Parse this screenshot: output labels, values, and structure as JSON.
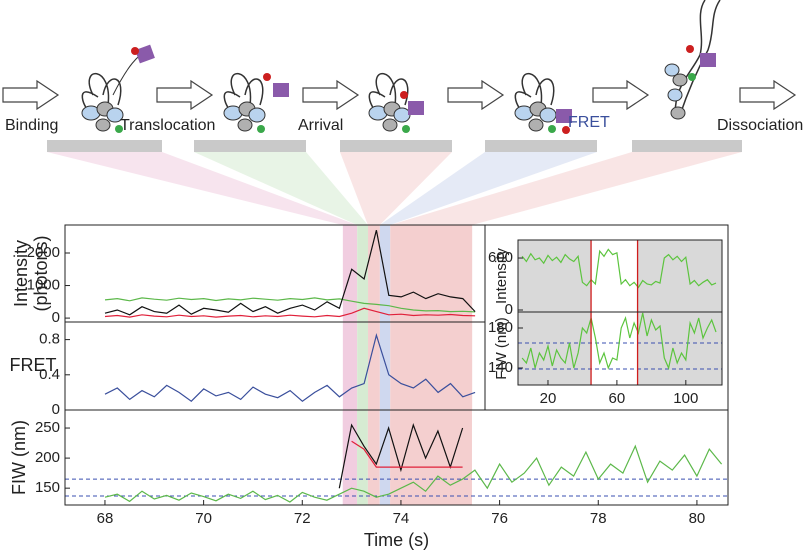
{
  "schematic": {
    "stages": [
      "Binding",
      "Translocation",
      "Arrival",
      "FRET",
      "Dissociation"
    ]
  },
  "shaded_regions": [
    {
      "start": 72.82,
      "end": 73.11,
      "color": "#f1cde0"
    },
    {
      "start": 73.11,
      "end": 73.33,
      "color": "#d6ebd2"
    },
    {
      "start": 73.33,
      "end": 73.57,
      "color": "#f4cfcf"
    },
    {
      "start": 73.57,
      "end": 73.78,
      "color": "#cfd8ef"
    },
    {
      "start": 73.78,
      "end": 75.44,
      "color": "#f4cfcf"
    }
  ],
  "chart_data": [
    {
      "type": "line",
      "y_label": [
        "Intensity",
        "(photons)"
      ],
      "x": [
        68,
        68.25,
        68.5,
        68.75,
        69,
        69.25,
        69.5,
        69.75,
        70,
        70.25,
        70.5,
        70.75,
        71,
        71.25,
        71.5,
        71.75,
        72,
        72.25,
        72.5,
        72.75,
        73,
        73.25,
        73.5,
        73.75,
        74,
        74.25,
        74.5,
        74.75,
        75,
        75.25,
        75.5
      ],
      "xlim": [
        67.19,
        75.7
      ],
      "ylim": [
        -120,
        2860
      ],
      "yticks": [
        0,
        1000,
        2000
      ],
      "series": [
        {
          "name": "green",
          "color": "#5cb84a",
          "values": [
            560,
            600,
            530,
            620,
            580,
            550,
            610,
            570,
            600,
            540,
            590,
            560,
            610,
            580,
            550,
            600,
            570,
            620,
            560,
            590,
            520,
            450,
            420,
            380,
            300,
            250,
            220,
            230,
            200,
            210,
            190
          ]
        },
        {
          "name": "black",
          "color": "#111111",
          "values": [
            150,
            250,
            100,
            350,
            200,
            150,
            400,
            120,
            300,
            250,
            180,
            450,
            200,
            350,
            150,
            300,
            400,
            250,
            500,
            300,
            1500,
            1200,
            2700,
            700,
            650,
            800,
            600,
            750,
            650,
            600,
            200
          ]
        },
        {
          "name": "red",
          "color": "#e0203a",
          "values": [
            50,
            80,
            30,
            100,
            60,
            40,
            90,
            50,
            70,
            30,
            60,
            80,
            40,
            70,
            50,
            90,
            60,
            40,
            80,
            50,
            150,
            300,
            200,
            100,
            120,
            80,
            100,
            90,
            110,
            80,
            70
          ]
        }
      ]
    },
    {
      "type": "line",
      "y_label": "FRET",
      "x": [
        68,
        68.25,
        68.5,
        68.75,
        69,
        69.25,
        69.5,
        69.75,
        70,
        70.25,
        70.5,
        70.75,
        71,
        71.25,
        71.5,
        71.75,
        72,
        72.25,
        72.5,
        72.75,
        73,
        73.25,
        73.5,
        73.75,
        74,
        74.25,
        74.5,
        74.75,
        75,
        75.25,
        75.5
      ],
      "xlim": [
        67.19,
        75.7
      ],
      "ylim": [
        0,
        1.0
      ],
      "yticks": [
        0,
        0.4,
        0.8
      ],
      "series": [
        {
          "name": "blue",
          "color": "#3a4f9c",
          "values": [
            0.18,
            0.25,
            0.12,
            0.22,
            0.15,
            0.28,
            0.2,
            0.1,
            0.24,
            0.16,
            0.2,
            0.12,
            0.26,
            0.18,
            0.14,
            0.22,
            0.1,
            0.2,
            0.28,
            0.15,
            0.25,
            0.3,
            0.85,
            0.4,
            0.3,
            0.25,
            0.35,
            0.2,
            0.3,
            0.15,
            0.2
          ]
        }
      ]
    },
    {
      "type": "line",
      "y_label": "FIW (nm)",
      "x_label": "Time (s)",
      "x": [
        68,
        68.25,
        68.5,
        68.75,
        69,
        69.25,
        69.5,
        69.75,
        70,
        70.25,
        70.5,
        70.75,
        71,
        71.25,
        71.5,
        71.75,
        72,
        72.25,
        72.5,
        72.75,
        73,
        73.25,
        73.5,
        73.75,
        74,
        74.25,
        74.5,
        74.75,
        75,
        75.25,
        75.5,
        75.75,
        76,
        76.25,
        76.5,
        76.75,
        77,
        77.25,
        77.5,
        77.75,
        78,
        78.25,
        78.5,
        78.75,
        79,
        79.25,
        79.5,
        79.75,
        80,
        80.25,
        80.5
      ],
      "xlim": [
        67.19,
        80.63
      ],
      "xticks": [
        68,
        70,
        72,
        74,
        76,
        78,
        80
      ],
      "ylim": [
        122,
        280
      ],
      "yticks": [
        150,
        200,
        250
      ],
      "reference_lines": [
        165,
        137
      ],
      "series": [
        {
          "name": "green",
          "color": "#5cb84a",
          "values": [
            135,
            140,
            128,
            145,
            132,
            138,
            130,
            142,
            136,
            129,
            140,
            133,
            145,
            131,
            138,
            127,
            143,
            135,
            130,
            140,
            150,
            145,
            135,
            140,
            150,
            160,
            145,
            170,
            155,
            165,
            180,
            150,
            190,
            160,
            175,
            200,
            155,
            185,
            170,
            210,
            165,
            190,
            175,
            220,
            160,
            195,
            180,
            205,
            170,
            215,
            190
          ]
        },
        {
          "name": "black",
          "color": "#111111",
          "values": [
            null,
            null,
            null,
            null,
            null,
            null,
            null,
            null,
            null,
            null,
            null,
            null,
            null,
            null,
            null,
            null,
            null,
            null,
            null,
            150,
            255,
            220,
            190,
            250,
            180,
            255,
            200,
            245,
            185,
            250,
            null,
            null,
            null,
            null,
            null,
            null,
            null,
            null,
            null,
            null,
            null,
            null,
            null,
            null,
            null,
            null,
            null,
            null,
            null,
            null,
            null
          ]
        },
        {
          "name": "red",
          "color": "#e0203a",
          "values": [
            null,
            null,
            null,
            null,
            null,
            null,
            null,
            null,
            null,
            null,
            null,
            null,
            null,
            null,
            null,
            null,
            null,
            null,
            null,
            null,
            228,
            215,
            185,
            185,
            185,
            185,
            185,
            185,
            185,
            185,
            null,
            null,
            null,
            null,
            null,
            null,
            null,
            null,
            null,
            null,
            null,
            null,
            null,
            null,
            null,
            null,
            null,
            null,
            null,
            null,
            null
          ]
        }
      ]
    },
    {
      "type": "line",
      "y_label": "Intensity",
      "x": [
        5,
        7.5,
        10,
        12.5,
        15,
        17.5,
        20,
        22.5,
        25,
        27.5,
        30,
        32.5,
        35,
        37.5,
        40,
        42.5,
        45,
        47.5,
        50,
        52.5,
        55,
        57.5,
        60,
        62.5,
        65,
        67.5,
        70,
        72.5,
        75,
        77.5,
        80,
        82.5,
        85,
        87.5,
        90,
        92.5,
        95,
        97.5,
        100,
        102.5,
        105,
        107.5,
        110,
        112.5,
        115,
        117.5
      ],
      "xlim": [
        2.6,
        121
      ],
      "ylim": [
        -23,
        808
      ],
      "yticks": [
        0,
        600
      ],
      "markers": [
        45,
        72
      ],
      "series": [
        {
          "name": "green",
          "color": "#5cc43e",
          "values": [
            620,
            560,
            650,
            580,
            600,
            540,
            630,
            570,
            610,
            550,
            640,
            590,
            560,
            620,
            320,
            280,
            350,
            300,
            680,
            620,
            700,
            640,
            660,
            300,
            350,
            280,
            320,
            260,
            340,
            300,
            290,
            330,
            310,
            600,
            640,
            580,
            620,
            560,
            610,
            300,
            340,
            280,
            320,
            350,
            290,
            310
          ]
        }
      ]
    },
    {
      "type": "line",
      "y_label": "FIW (nm)",
      "x": [
        5,
        7.5,
        10,
        12.5,
        15,
        17.5,
        20,
        22.5,
        25,
        27.5,
        30,
        32.5,
        35,
        37.5,
        40,
        42.5,
        45,
        47.5,
        50,
        52.5,
        55,
        57.5,
        60,
        62.5,
        65,
        67.5,
        70,
        72.5,
        75,
        77.5,
        80,
        82.5,
        85,
        87.5,
        90,
        92.5,
        95,
        97.5,
        100,
        102.5,
        105,
        107.5,
        110,
        112.5,
        115,
        117.5
      ],
      "xlim": [
        2.6,
        121
      ],
      "xticks": [
        20,
        60,
        100
      ],
      "ylim": [
        123,
        196
      ],
      "yticks": [
        140,
        180
      ],
      "markers": [
        45,
        72
      ],
      "reference_lines": [
        165,
        139
      ],
      "series": [
        {
          "name": "green",
          "color": "#5cc43e",
          "values": [
            150,
            145,
            160,
            140,
            155,
            148,
            162,
            142,
            158,
            150,
            145,
            165,
            140,
            155,
            180,
            175,
            190,
            170,
            145,
            155,
            140,
            150,
            148,
            180,
            190,
            170,
            185,
            175,
            195,
            172,
            188,
            178,
            182,
            150,
            140,
            160,
            145,
            155,
            148,
            185,
            175,
            190,
            170,
            180,
            188,
            176
          ]
        }
      ]
    }
  ]
}
